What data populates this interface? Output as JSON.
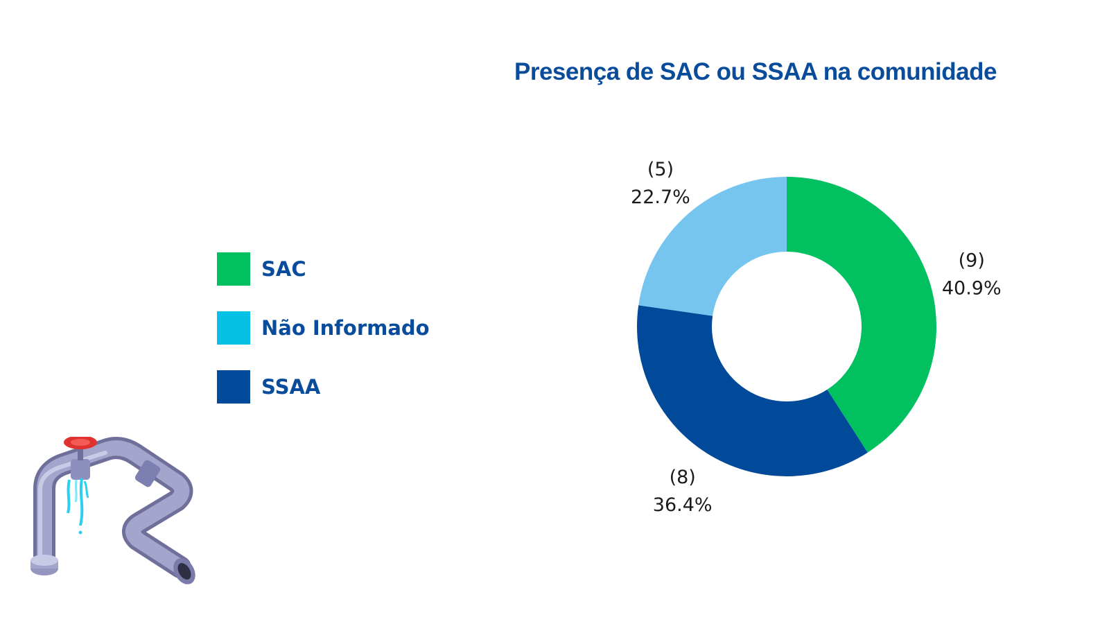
{
  "chart_data": {
    "type": "pie",
    "donut": true,
    "title": "Presença de SAC ou SSAA na comunidade",
    "legend_position": "left",
    "slices": [
      {
        "name": "SAC",
        "count": 9,
        "value": 40.9,
        "count_label": "(9)",
        "percent_label": "40.9%",
        "color": "#00c05f"
      },
      {
        "name": "SSAA",
        "count": 8,
        "value": 36.4,
        "count_label": "(8)",
        "percent_label": "36.4%",
        "color": "#014a99"
      },
      {
        "name": "Não Informado",
        "count": 5,
        "value": 22.7,
        "count_label": "(5)",
        "percent_label": "22.7%",
        "color": "#75c5ef"
      }
    ],
    "legend": [
      {
        "label": "SAC",
        "color": "#00c05f"
      },
      {
        "label": "Não Informado",
        "color": "#07c1e4"
      },
      {
        "label": "SSAA",
        "color": "#014a99"
      }
    ]
  },
  "decoration": {
    "icon": "leaking-pipe-icon"
  }
}
